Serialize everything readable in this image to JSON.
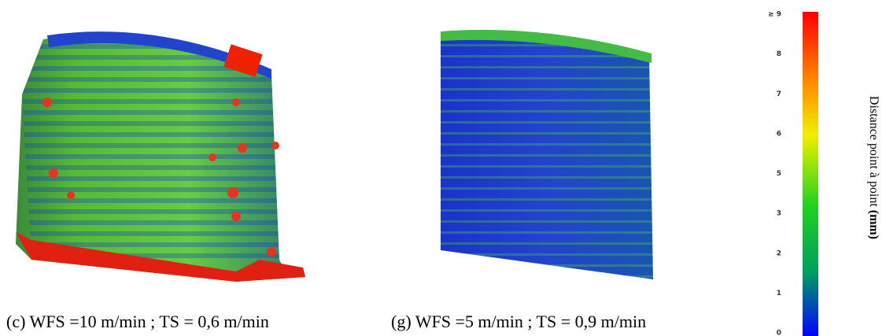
{
  "captions": [
    "(c) WFS =10 m/min ; TS = 0,6 m/min",
    "(g) WFS =5 m/min ; TS = 0,9 m/min"
  ],
  "colorbar": {
    "ticks": [
      "≥ 9",
      "8",
      "7",
      "6",
      "5",
      "3",
      "2",
      "1",
      "0"
    ],
    "label": "Distance point à point ",
    "unit": "(mm)"
  }
}
